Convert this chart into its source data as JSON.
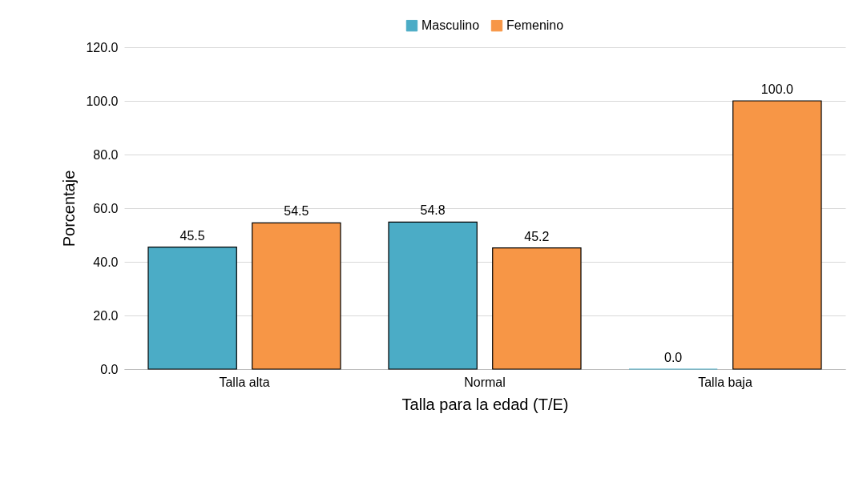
{
  "chart_data": {
    "type": "bar",
    "xlabel": "Talla para la edad (T/E)",
    "ylabel": "Porcentaje",
    "categories": [
      "Talla alta",
      "Normal",
      "Talla baja"
    ],
    "series": [
      {
        "name": "Masculino",
        "color": "#4bacc6",
        "values": [
          45.5,
          54.8,
          0.0
        ],
        "value_labels": [
          "45.5",
          "54.8",
          "0.0"
        ]
      },
      {
        "name": "Femenino",
        "color": "#f79646",
        "values": [
          54.5,
          45.2,
          100.0
        ],
        "value_labels": [
          "54.5",
          "45.2",
          "100.0"
        ]
      }
    ],
    "ylim": [
      0,
      120
    ],
    "yticks": [
      {
        "value": 0,
        "label": "0.0"
      },
      {
        "value": 20,
        "label": "20.0"
      },
      {
        "value": 40,
        "label": "40.0"
      },
      {
        "value": 60,
        "label": "60.0"
      },
      {
        "value": 80,
        "label": "80.0"
      },
      {
        "value": 100,
        "label": "100.0"
      },
      {
        "value": 120,
        "label": "120.0"
      }
    ],
    "grid": "y",
    "legend": "top"
  }
}
